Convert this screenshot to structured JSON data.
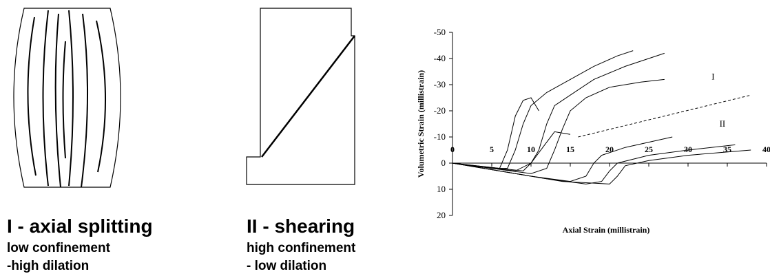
{
  "panels": [
    {
      "title": "I - axial splitting",
      "lines": [
        "low confinement",
        "-high dilation"
      ]
    },
    {
      "title": "II - shearing",
      "lines": [
        "high confinement",
        "- low dilation"
      ]
    }
  ],
  "chart_data": {
    "type": "line",
    "xlabel": "Axial Strain (millistrain)",
    "ylabel": "Volumetric Strain (millistrain)",
    "xlim": [
      0,
      40
    ],
    "xticks": [
      0,
      5,
      10,
      15,
      20,
      25,
      30,
      35,
      40
    ],
    "ylim": [
      20,
      -50
    ],
    "yticks": [
      -50,
      -40,
      -30,
      -20,
      -10,
      0,
      10,
      20
    ],
    "grid": false,
    "series": [
      {
        "color": "#000000",
        "x": [
          0,
          5,
          7,
          8,
          9,
          10,
          12,
          15,
          18,
          21,
          23
        ],
        "values": [
          0,
          2,
          2,
          -5,
          -15,
          -22,
          -27,
          -32,
          -37,
          -41,
          -43
        ]
      },
      {
        "color": "#000000",
        "x": [
          0,
          8,
          10,
          11,
          12,
          13,
          15,
          18,
          22,
          27
        ],
        "values": [
          0,
          3,
          0,
          -5,
          -15,
          -22,
          -26,
          -32,
          -37,
          -42
        ]
      },
      {
        "color": "#000000",
        "x": [
          0,
          10,
          12,
          13,
          14,
          15,
          17,
          20,
          24,
          27
        ],
        "values": [
          0,
          4,
          2,
          -5,
          -13,
          -20,
          -25,
          -29,
          -31,
          -32
        ]
      },
      {
        "color": "#000000",
        "x": [
          0,
          9,
          10,
          12,
          13,
          15
        ],
        "values": [
          0,
          3,
          0,
          -8,
          -12,
          -11
        ]
      },
      {
        "color": "#000000",
        "x": [
          0,
          6,
          7,
          8,
          9,
          10,
          11
        ],
        "values": [
          0,
          2,
          -5,
          -18,
          -24,
          -25,
          -20
        ]
      },
      {
        "color": "#000000",
        "x": [
          0,
          10,
          15,
          17,
          18,
          19,
          22,
          25,
          28
        ],
        "values": [
          0,
          5,
          7,
          5,
          0,
          -3,
          -6,
          -8,
          -10
        ]
      },
      {
        "color": "#000000",
        "x": [
          0,
          12,
          17,
          19,
          20,
          21,
          25,
          30,
          36
        ],
        "values": [
          0,
          6,
          8,
          7,
          3,
          0,
          -3,
          -5,
          -7
        ]
      },
      {
        "color": "#000000",
        "x": [
          0,
          14,
          20,
          21,
          22,
          25,
          30,
          38
        ],
        "values": [
          0,
          7,
          8,
          5,
          1,
          -1,
          -3,
          -5
        ]
      },
      {
        "color": "#000000",
        "dash": true,
        "x": [
          16,
          38
        ],
        "values": [
          -10,
          -26
        ]
      }
    ],
    "annotations": [
      {
        "text": "I",
        "x": 33,
        "y": -32
      },
      {
        "text": "II",
        "x": 34,
        "y": -14
      }
    ]
  }
}
